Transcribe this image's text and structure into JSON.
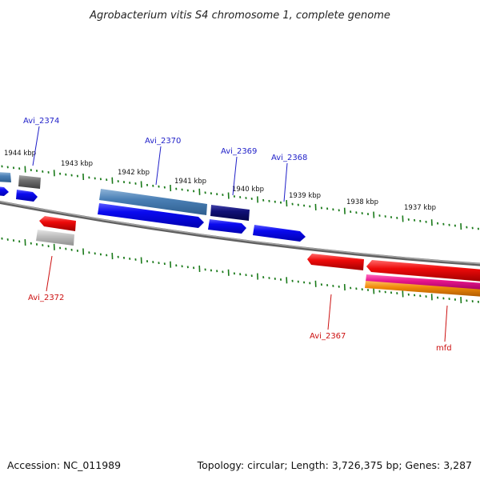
{
  "title": "Agrobacterium vitis S4 chromosome 1, complete genome",
  "footer": {
    "accession": "Accession: NC_011989",
    "summary": "Topology: circular; Length: 3,726,375 bp; Genes: 3,287"
  },
  "ticks": [
    "1944 kbp",
    "1943 kbp",
    "1942 kbp",
    "1941 kbp",
    "1940 kbp",
    "1939 kbp",
    "1938 kbp",
    "1937 kbp"
  ],
  "labels": {
    "forward": [
      "Avi_2374",
      "Avi_2370",
      "Avi_2369",
      "Avi_2368"
    ],
    "reverse": [
      "Avi_2372",
      "Avi_2367",
      "mfd"
    ]
  },
  "colors": {
    "forward_label": "#1f1fc8",
    "reverse_label": "#cc1010",
    "tick": "#1a7a1a",
    "backbone": "#808080",
    "cds_forward": "#0a0af0",
    "cds_forward_light": "#4a7fb5",
    "cds_forward_dark": "#111177",
    "cds_reverse": "#ee0a0a",
    "cds_reverse_pink": "#e8168c",
    "cds_reverse_orange": "#f08a0a",
    "cds_grey": "#6e6e6e",
    "cds_light_grey": "#c0c0c0"
  }
}
